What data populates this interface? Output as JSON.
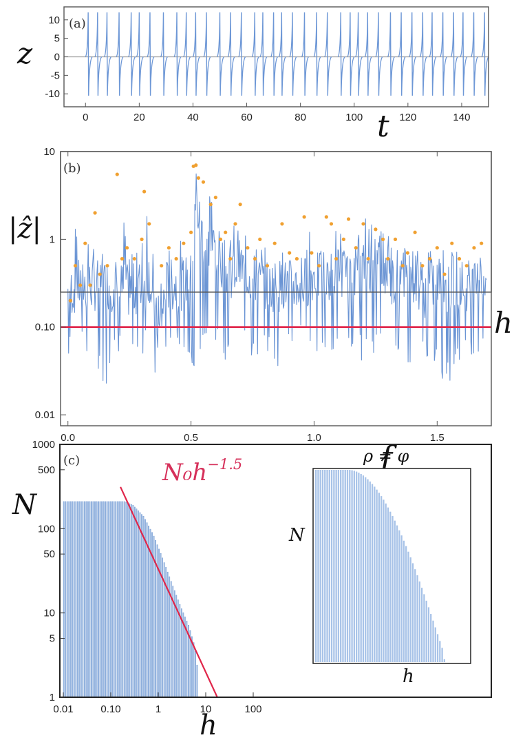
{
  "chart_data": [
    {
      "panel": "(a)",
      "type": "line",
      "xlabel": "t",
      "ylabel": "z",
      "xlim": [
        -8,
        150
      ],
      "ylim": [
        -13.5,
        13.5
      ],
      "xticks": [
        0,
        20,
        40,
        60,
        80,
        100,
        120,
        140
      ],
      "yticks": [
        10,
        5,
        0,
        -5,
        -10
      ],
      "spike_times": [
        1,
        4.5,
        8,
        12.5,
        17,
        20,
        24,
        29,
        34,
        37.5,
        41,
        45,
        50,
        54,
        58,
        63,
        66,
        70,
        73,
        77,
        81.5,
        86,
        90,
        95,
        98.5,
        101.5,
        105,
        109,
        113.5,
        117.5,
        121.5,
        125.5,
        129,
        133,
        137,
        140.5,
        144.5,
        148.5
      ],
      "spike_peaks": [
        12,
        12,
        12,
        12,
        12,
        12,
        12,
        12,
        12,
        12,
        12,
        12,
        12,
        12,
        12,
        12,
        12,
        12,
        12,
        12,
        12,
        12,
        12,
        12,
        12,
        12,
        12,
        12,
        12,
        12,
        12,
        12,
        12,
        12,
        12,
        12,
        12,
        12
      ],
      "spike_troughs": [
        -10.5,
        -10.5,
        -10.5,
        -10.5,
        -10.5,
        -10.5,
        -10.5,
        -10.5,
        -10.5,
        -10.5,
        -10.5,
        -10.5,
        -10.5,
        -10.5,
        -10.5,
        -10.5,
        -10.5,
        -10.5,
        -10.5,
        -10.5,
        -10.5,
        -10.5,
        -10.5,
        -10.5,
        -10.5,
        -10.5,
        -10.5,
        -10.5,
        -10.5,
        -10.5,
        -10.5,
        -10.5,
        -10.5,
        -10.5,
        -10.5,
        -10.5,
        -10.5,
        -10.5
      ],
      "colors": {
        "line": "#6d97d6",
        "zero_line": "#999999"
      }
    },
    {
      "panel": "(b)",
      "type": "line",
      "xlabel": "f",
      "ylabel": "|ẑ|",
      "y_scale": "log",
      "xlim": [
        -0.03,
        1.72
      ],
      "ylim": [
        0.0075,
        10
      ],
      "xticks": [
        "0.0",
        "0.5",
        "1.0",
        "1.5"
      ],
      "yticks": [
        "10",
        "1",
        "0.10",
        "0.01"
      ],
      "threshold": {
        "value": 0.1,
        "label": "h",
        "color": "#e0264a"
      },
      "spectrum": {
        "f": [
          0.0,
          0.05,
          0.1,
          0.15,
          0.2,
          0.25,
          0.3,
          0.33,
          0.35,
          0.37,
          0.4,
          0.45,
          0.5,
          0.52,
          0.55,
          0.6,
          0.65,
          0.7,
          0.75,
          0.8,
          0.85,
          0.9,
          0.95,
          1.0,
          1.05,
          1.1,
          1.15,
          1.2,
          1.25,
          1.3,
          1.35,
          1.4,
          1.45,
          1.5,
          1.55,
          1.6,
          1.65,
          1.7
        ],
        "upper": [
          0.5,
          2.5,
          0.8,
          1.0,
          5.5,
          0.7,
          1.0,
          4.5,
          0.4,
          0.25,
          1.0,
          1.0,
          1.0,
          6.5,
          4.5,
          2.5,
          0.9,
          2.5,
          1.0,
          0.8,
          1.2,
          1.0,
          0.8,
          1.8,
          0.8,
          1.5,
          0.8,
          1.8,
          1.5,
          1.2,
          1.0,
          1.0,
          0.7,
          1.2,
          0.7,
          0.8,
          0.7,
          0.8
        ],
        "lower": [
          0.04,
          0.05,
          0.03,
          0.02,
          0.05,
          0.05,
          0.04,
          0.07,
          0.03,
          0.012,
          0.06,
          0.05,
          0.04,
          0.02,
          0.06,
          0.05,
          0.04,
          0.06,
          0.04,
          0.05,
          0.03,
          0.05,
          0.06,
          0.05,
          0.03,
          0.04,
          0.05,
          0.04,
          0.05,
          0.04,
          0.05,
          0.03,
          0.04,
          0.03,
          0.02,
          0.04,
          0.05,
          0.05
        ],
        "median": [
          0.25,
          0.3,
          0.3,
          0.3,
          0.3,
          0.25,
          0.3,
          0.4,
          0.15,
          0.08,
          0.3,
          0.3,
          0.35,
          2.5,
          1.0,
          0.8,
          0.4,
          0.5,
          0.35,
          0.3,
          0.3,
          0.3,
          0.3,
          0.4,
          0.3,
          0.5,
          0.3,
          0.5,
          0.5,
          0.4,
          0.3,
          0.4,
          0.25,
          0.35,
          0.25,
          0.3,
          0.3,
          0.4
        ]
      },
      "peak_markers": {
        "f": [
          0.01,
          0.03,
          0.05,
          0.07,
          0.09,
          0.11,
          0.13,
          0.16,
          0.2,
          0.22,
          0.24,
          0.27,
          0.3,
          0.31,
          0.33,
          0.38,
          0.41,
          0.44,
          0.47,
          0.5,
          0.51,
          0.52,
          0.53,
          0.55,
          0.58,
          0.6,
          0.62,
          0.64,
          0.66,
          0.68,
          0.7,
          0.73,
          0.76,
          0.78,
          0.81,
          0.84,
          0.87,
          0.9,
          0.93,
          0.96,
          0.99,
          1.02,
          1.05,
          1.07,
          1.09,
          1.12,
          1.14,
          1.17,
          1.2,
          1.22,
          1.25,
          1.28,
          1.3,
          1.33,
          1.36,
          1.38,
          1.41,
          1.44,
          1.47,
          1.5,
          1.53,
          1.56,
          1.59,
          1.62,
          1.65,
          1.68
        ],
        "v": [
          0.2,
          0.5,
          0.3,
          0.9,
          0.3,
          2.0,
          0.4,
          0.5,
          5.5,
          0.6,
          0.8,
          0.6,
          1.0,
          3.5,
          1.5,
          0.5,
          0.8,
          0.6,
          0.9,
          1.2,
          6.8,
          7.0,
          5.0,
          4.5,
          2.5,
          3.0,
          1.0,
          1.2,
          0.6,
          1.5,
          2.5,
          0.8,
          0.6,
          1.0,
          0.5,
          0.9,
          1.5,
          0.7,
          0.6,
          1.8,
          0.7,
          0.5,
          1.8,
          1.5,
          0.6,
          1.0,
          1.7,
          0.8,
          1.5,
          0.6,
          1.3,
          1.0,
          0.6,
          1.0,
          0.5,
          0.7,
          1.2,
          0.5,
          0.6,
          0.8,
          0.4,
          0.9,
          0.6,
          0.5,
          0.8,
          0.9
        ]
      },
      "colors": {
        "line": "#6a94d4",
        "markers": "#f0a030"
      }
    },
    {
      "panel": "(c)",
      "type": "bar",
      "x_scale": "log",
      "y_scale": "log",
      "xlabel": "h",
      "ylabel": "N",
      "xlim": [
        0.01,
        10000
      ],
      "ylim": [
        1,
        1000
      ],
      "xticks": [
        "0.01",
        "0.10",
        "1",
        "10",
        "100"
      ],
      "yticks": [
        "1000",
        "500",
        "100",
        "50",
        "10",
        "5",
        "1"
      ],
      "histogram": {
        "h": [
          0.01,
          0.2,
          0.3,
          0.5,
          0.8,
          1.2,
          2.0,
          3.0,
          4.5,
          6.0,
          7.0
        ],
        "N": [
          210,
          210,
          190,
          140,
          85,
          48,
          22,
          12,
          7,
          4,
          2
        ]
      },
      "fit": {
        "label": "N₀h",
        "exponent": "−1.5",
        "slope": -1.5,
        "N0": 20,
        "color": "#e0264a"
      },
      "inset": {
        "title": "ρ ≠ φ",
        "xlabel": "h",
        "ylabel": "N",
        "bar_count": 58,
        "colors": {
          "bars": "#a8c3e8"
        }
      },
      "colors": {
        "bars": "#9dbbe4",
        "bar_edges": "#6f96cf"
      }
    }
  ]
}
